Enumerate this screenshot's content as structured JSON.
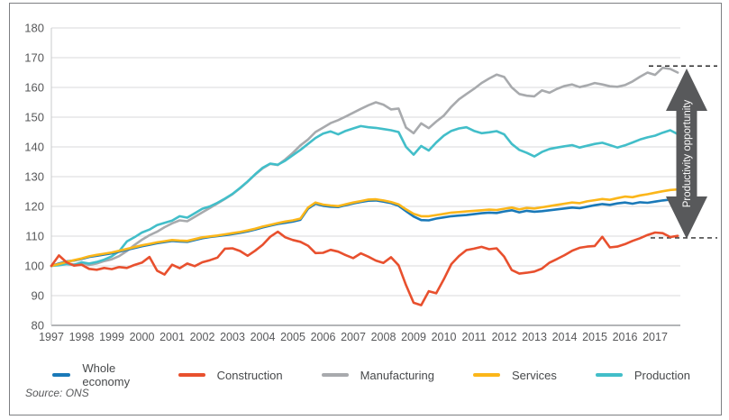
{
  "figure": {
    "background": "#ffffff",
    "frame_color": "#7d7f82",
    "source": "Source: ONS"
  },
  "chart_data": {
    "type": "line",
    "title": "",
    "xlabel": "",
    "ylabel": "",
    "grid": "horizontal",
    "legend_position": "bottom",
    "frequency": "quarterly",
    "x_range": [
      1997.0,
      2017.75
    ],
    "x_tick_labels": [
      "1997",
      "1998",
      "1999",
      "2000",
      "2001",
      "2002",
      "2003",
      "2004",
      "2005",
      "2006",
      "2007",
      "2008",
      "2009",
      "2010",
      "2011",
      "2012",
      "2013",
      "2014",
      "2015",
      "2016",
      "2017"
    ],
    "y_axis": {
      "min": 80,
      "max": 180,
      "ticks": [
        80,
        90,
        100,
        110,
        120,
        130,
        140,
        150,
        160,
        170,
        180
      ]
    },
    "series": [
      {
        "name": "Whole economy",
        "color": "#1a79b8",
        "values": [
          100,
          100.8,
          101.5,
          101.8,
          102.3,
          103,
          103.4,
          103.8,
          104.2,
          104.8,
          105.4,
          106,
          106.6,
          107.1,
          107.6,
          108,
          108.4,
          108.2,
          108.1,
          108.7,
          109.3,
          109.7,
          110,
          110.3,
          110.7,
          111.1,
          111.6,
          112.2,
          112.9,
          113.5,
          114.1,
          114.5,
          114.9,
          115.5,
          119.2,
          120.9,
          120.2,
          119.9,
          119.8,
          120.4,
          121,
          121.5,
          121.9,
          122,
          121.6,
          121.1,
          120.2,
          118.4,
          116.6,
          115.4,
          115.3,
          115.9,
          116.3,
          116.7,
          116.9,
          117.1,
          117.4,
          117.7,
          117.9,
          117.8,
          118.3,
          118.7,
          118,
          118.5,
          118.2,
          118.4,
          118.7,
          119,
          119.3,
          119.6,
          119.4,
          119.9,
          120.4,
          120.8,
          120.5,
          121,
          121.3,
          120.9,
          121.4,
          121.2,
          121.6,
          122,
          122.3,
          122.1
        ]
      },
      {
        "name": "Construction",
        "color": "#e8502e",
        "values": [
          100,
          103.5,
          101.2,
          100.1,
          100.4,
          99,
          98.7,
          99.3,
          98.9,
          99.6,
          99.3,
          100.3,
          101.1,
          103,
          98.4,
          97.1,
          100.4,
          99.2,
          100.8,
          99.9,
          101.2,
          101.9,
          102.8,
          105.8,
          105.9,
          105,
          103.4,
          105.1,
          107.1,
          109.8,
          111.5,
          109.6,
          108.7,
          108.1,
          106.8,
          104.3,
          104.4,
          105.4,
          104.8,
          103.6,
          102.6,
          104.2,
          103.1,
          101.8,
          101,
          102.9,
          100.2,
          93.5,
          87.6,
          86.8,
          91.5,
          90.8,
          95.5,
          100.6,
          103.3,
          105.3,
          105.8,
          106.4,
          105.6,
          105.9,
          103.1,
          98.6,
          97.4,
          97.7,
          98.1,
          99.1,
          101.1,
          102.3,
          103.6,
          105.1,
          106.1,
          106.5,
          106.7,
          109.8,
          106.2,
          106.5,
          107.3,
          108.4,
          109.3,
          110.4,
          111.2,
          111,
          109.7,
          110.1
        ]
      },
      {
        "name": "Manufacturing",
        "color": "#a8aaad",
        "values": [
          100,
          100.4,
          100.8,
          100.5,
          101,
          100.3,
          100.8,
          101.6,
          102.2,
          103.3,
          105,
          107,
          108.8,
          110.3,
          111.5,
          113,
          114.3,
          115.3,
          115,
          116.5,
          118,
          119.5,
          121,
          122.5,
          124.1,
          126.1,
          128.3,
          130.7,
          132.8,
          134.3,
          133.9,
          135.8,
          138,
          140.5,
          142.5,
          145,
          146.5,
          148,
          149,
          150.2,
          151.5,
          152.8,
          154,
          155,
          154.2,
          152.6,
          152.9,
          146.5,
          144.6,
          147.9,
          146.3,
          148.5,
          150.5,
          153.5,
          156,
          157.8,
          159.5,
          161.5,
          163,
          164.3,
          163.5,
          160,
          157.8,
          157.2,
          157,
          159,
          158.2,
          159.5,
          160.5,
          161,
          160.1,
          160.7,
          161.5,
          161,
          160.4,
          160.2,
          160.8,
          162,
          163.6,
          165,
          164.2,
          166.6,
          166.2,
          165
        ]
      },
      {
        "name": "Services",
        "color": "#fbb61a",
        "values": [
          100,
          100.6,
          101.3,
          101.9,
          102.5,
          103.2,
          103.7,
          104.1,
          104.5,
          105.1,
          105.7,
          106.3,
          106.9,
          107.4,
          107.9,
          108.3,
          108.7,
          108.5,
          108.4,
          109,
          109.6,
          109.9,
          110.2,
          110.6,
          111,
          111.4,
          111.9,
          112.5,
          113.2,
          113.8,
          114.4,
          114.9,
          115.3,
          115.9,
          119.6,
          121.3,
          120.6,
          120.3,
          120.1,
          120.7,
          121.3,
          121.8,
          122.3,
          122.4,
          122,
          121.5,
          120.7,
          119,
          117.5,
          116.7,
          116.7,
          117.1,
          117.5,
          117.9,
          118.1,
          118.3,
          118.5,
          118.7,
          118.9,
          118.8,
          119.2,
          119.6,
          119,
          119.5,
          119.3,
          119.7,
          120.1,
          120.5,
          120.9,
          121.3,
          121.1,
          121.7,
          122.1,
          122.5,
          122.2,
          122.8,
          123.3,
          123.1,
          123.7,
          124.1,
          124.6,
          125.1,
          125.5,
          125.7
        ]
      },
      {
        "name": "Production",
        "color": "#42bec9",
        "values": [
          100,
          100.2,
          100.6,
          100.3,
          101.2,
          100.8,
          101.3,
          102.1,
          103.2,
          105,
          108.2,
          109.6,
          111.2,
          112.2,
          113.7,
          114.5,
          115.2,
          116.7,
          116.2,
          117.7,
          119.2,
          120,
          121.2,
          122.6,
          124.2,
          126.2,
          128.4,
          130.8,
          133,
          134.4,
          134,
          135.4,
          137.2,
          139,
          141,
          143,
          144.5,
          145.2,
          144.2,
          145.4,
          146.2,
          147,
          146.6,
          146.4,
          146,
          145.6,
          145,
          140,
          137.4,
          140.3,
          138.8,
          141.5,
          143.8,
          145.4,
          146.2,
          146.6,
          145.4,
          144.6,
          144.9,
          145.3,
          144.2,
          141,
          139,
          138,
          136.8,
          138.3,
          139.3,
          139.8,
          140.2,
          140.6,
          139.8,
          140.4,
          141,
          141.4,
          140.6,
          139.8,
          140.5,
          141.5,
          142.5,
          143.2,
          143.8,
          144.8,
          145.6,
          144.3
        ]
      }
    ],
    "annotation": {
      "label": "Productivity opportunity",
      "arrow_color": "#58595b",
      "text_color": "#ffffff",
      "guide_top_value": 167.2,
      "guide_bottom_value": 109.4,
      "guide_color": "#2b2b2b"
    },
    "style": {
      "grid_color": "#d9dadb",
      "axis_color": "#b3b5b7",
      "tick_label_color": "#57585a"
    }
  },
  "source": {
    "text": "Source: ONS"
  }
}
